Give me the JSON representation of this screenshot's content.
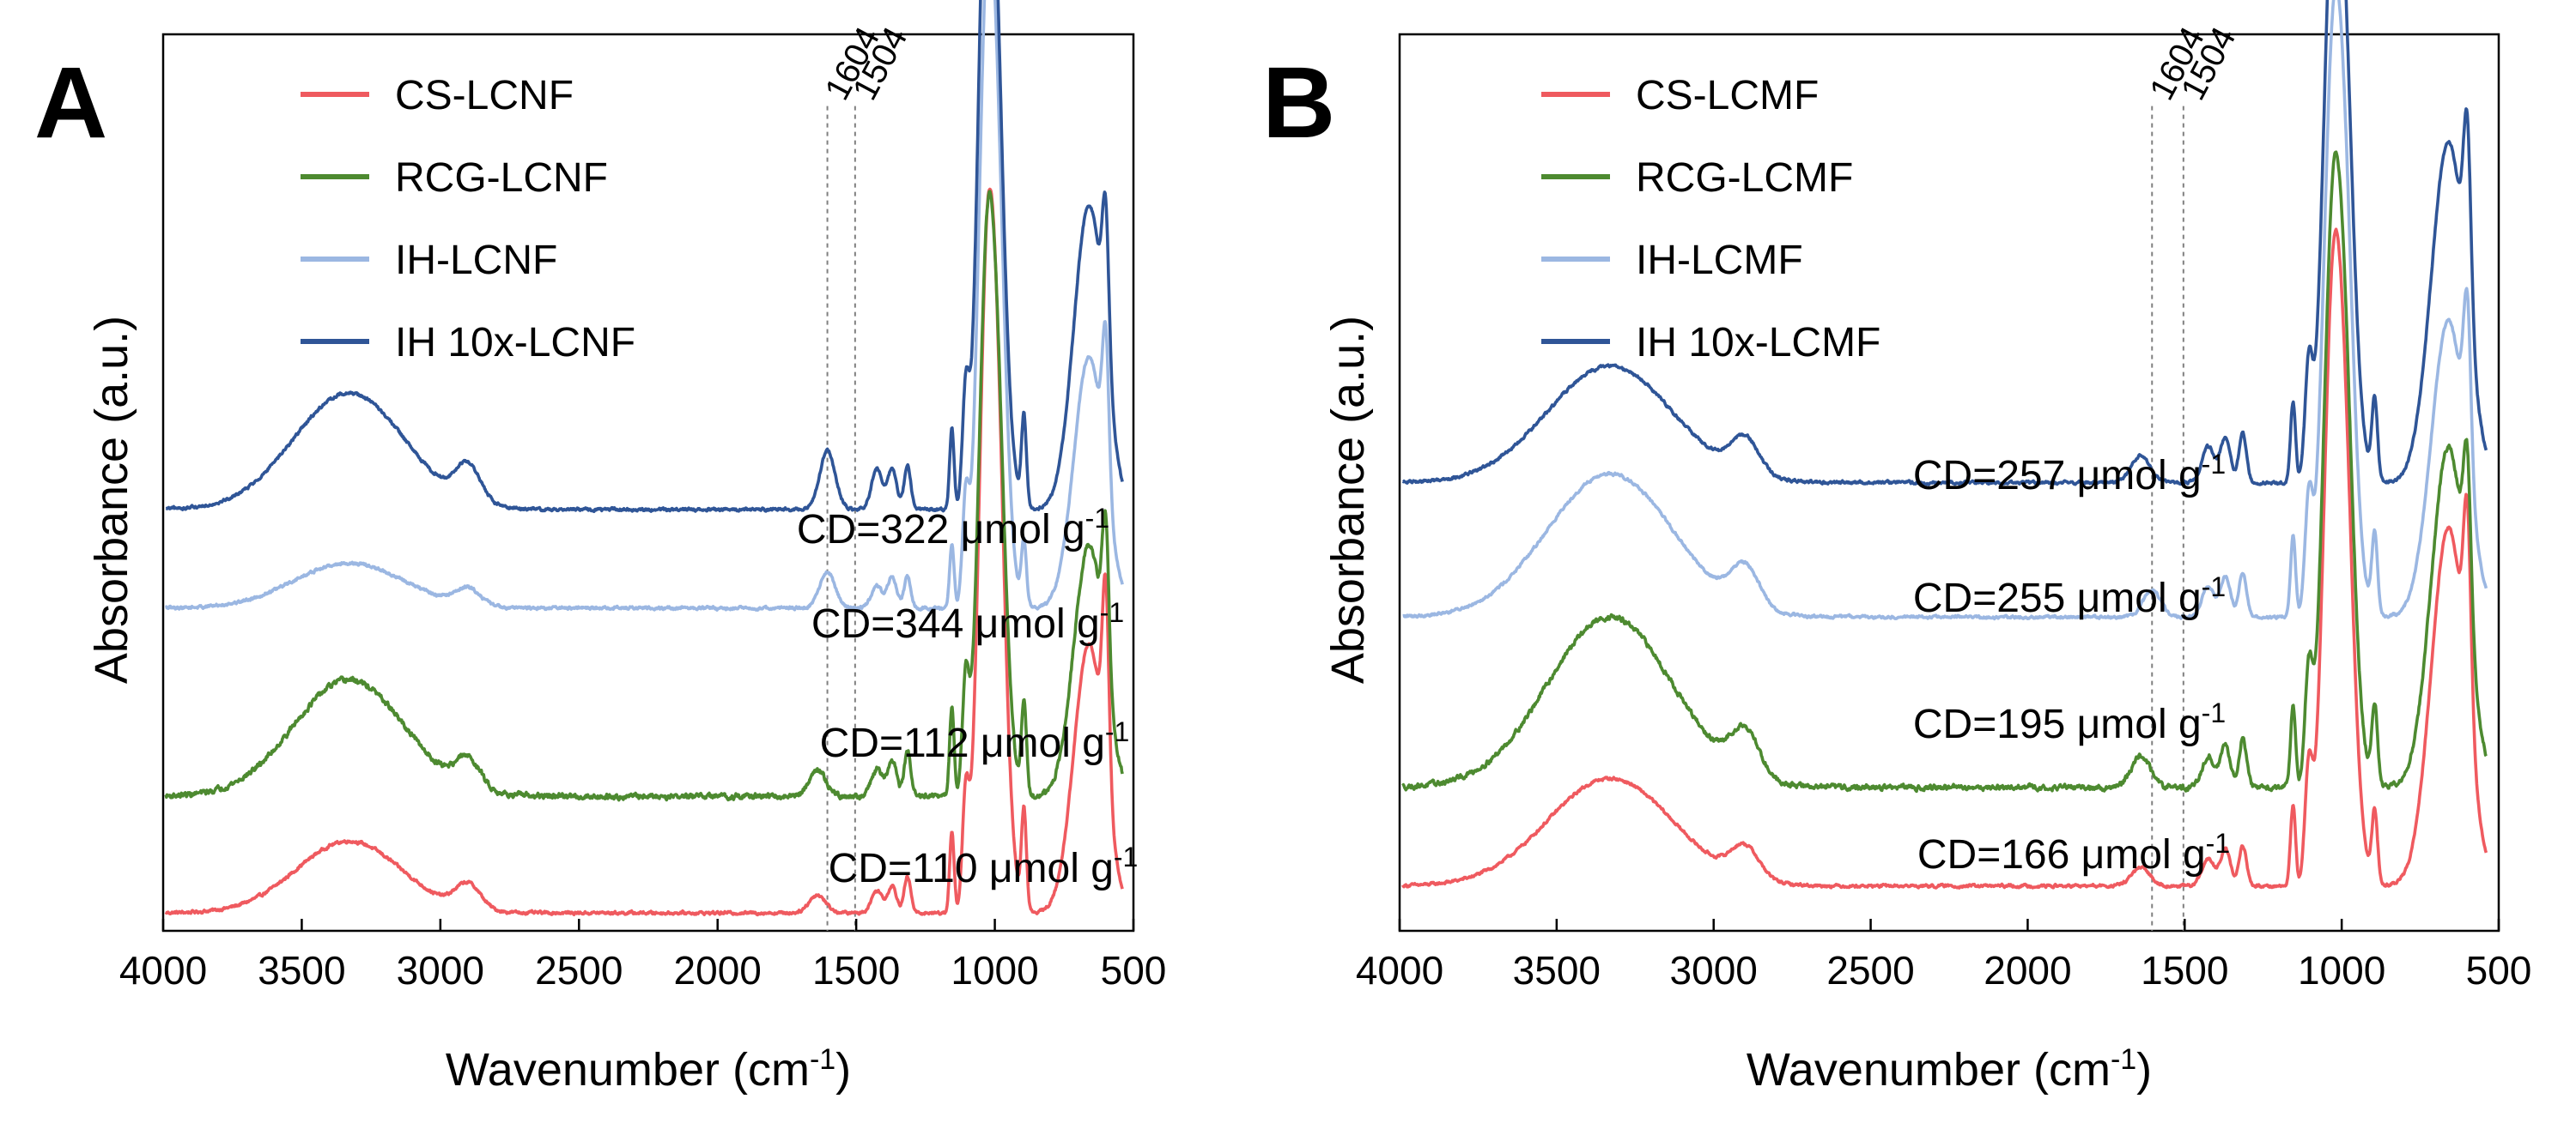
{
  "figure": {
    "panels": [
      {
        "letter": "A",
        "series_names": [
          "CS-LCNF",
          "RCG-LCNF",
          "IH-LCNF",
          "IH 10x-LCNF"
        ],
        "cd_labels": [
          {
            "text": "CD=110 μmol g",
            "sup": "-1"
          },
          {
            "text": "CD=112 μmol g",
            "sup": "-1"
          },
          {
            "text": "CD=344 μmol g",
            "sup": "-1"
          },
          {
            "text": "CD=322 μmol g",
            "sup": "-1"
          }
        ]
      },
      {
        "letter": "B",
        "series_names": [
          "CS-LCMF",
          "RCG-LCMF",
          "IH-LCMF",
          "IH 10x-LCMF"
        ],
        "cd_labels": [
          {
            "text": "CD=166 μmol g",
            "sup": "-1"
          },
          {
            "text": "CD=195 μmol g",
            "sup": "-1"
          },
          {
            "text": "CD=255 μmol g",
            "sup": "-1"
          },
          {
            "text": "CD=257 μmol g",
            "sup": "-1"
          }
        ]
      }
    ],
    "colors": [
      "#ef5a5f",
      "#4d8a30",
      "#9bb7e2",
      "#2f5597"
    ]
  },
  "chart_data": [
    {
      "type": "line",
      "panel": "A",
      "title": "",
      "xlabel": "Wavenumber (cm",
      "xlabel_sup": "-1",
      "xlabel_tail": ")",
      "ylabel": "Absorbance (a.u.)",
      "xlim": [
        4000,
        500
      ],
      "ylim": [
        0,
        100
      ],
      "xticks": [
        4000,
        3500,
        3000,
        2500,
        2000,
        1500,
        1000,
        500
      ],
      "reference_lines": [
        {
          "x": 1604,
          "label": "1604"
        },
        {
          "x": 1504,
          "label": "1504"
        }
      ],
      "legend_location": "top-left",
      "series": [
        {
          "name": "CS-LCNF",
          "offset": 2,
          "noise": 0.25,
          "peaks": [
            [
              3330,
              190,
              8
            ],
            [
              2900,
              45,
              2.8
            ],
            [
              1640,
              30,
              2
            ],
            [
              1425,
              20,
              2.5
            ],
            [
              1370,
              16,
              3
            ],
            [
              1315,
              12,
              4
            ],
            [
              1155,
              8,
              9
            ],
            [
              1105,
              12,
              12
            ],
            [
              1030,
              30,
              53
            ],
            [
              1000,
              40,
              27
            ],
            [
              985,
              25,
              18
            ],
            [
              895,
              9,
              11
            ],
            [
              660,
              55,
              30
            ],
            [
              600,
              12,
              21
            ]
          ]
        },
        {
          "name": "RCG-LCNF",
          "offset": 15,
          "noise": 0.45,
          "peaks": [
            [
              3330,
              200,
              13
            ],
            [
              2900,
              45,
              3.2
            ],
            [
              1640,
              30,
              3
            ],
            [
              1425,
              20,
              3
            ],
            [
              1370,
              16,
              4
            ],
            [
              1315,
              12,
              5
            ],
            [
              1155,
              8,
              10
            ],
            [
              1105,
              12,
              12
            ],
            [
              1030,
              30,
              45
            ],
            [
              1000,
              40,
              22
            ],
            [
              985,
              25,
              14
            ],
            [
              895,
              9,
              10
            ],
            [
              660,
              55,
              28
            ],
            [
              600,
              12,
              16
            ]
          ]
        },
        {
          "name": "IH-LCNF",
          "offset": 36,
          "noise": 0.25,
          "peaks": [
            [
              3330,
              200,
              5
            ],
            [
              2900,
              45,
              1.8
            ],
            [
              1604,
              28,
              4
            ],
            [
              1425,
              20,
              2.5
            ],
            [
              1370,
              16,
              3.5
            ],
            [
              1315,
              12,
              3.5
            ],
            [
              1155,
              8,
              7
            ],
            [
              1105,
              12,
              11
            ],
            [
              1030,
              30,
              53
            ],
            [
              1000,
              40,
              23
            ],
            [
              985,
              25,
              16
            ],
            [
              895,
              9,
              7
            ],
            [
              660,
              55,
              28
            ],
            [
              600,
              12,
              16
            ]
          ]
        },
        {
          "name": "IH 10x-LCNF",
          "offset": 47,
          "noise": 0.25,
          "peaks": [
            [
              3330,
              200,
              13
            ],
            [
              2900,
              45,
              4
            ],
            [
              1604,
              28,
              6.5
            ],
            [
              1425,
              20,
              4.5
            ],
            [
              1370,
              16,
              4.5
            ],
            [
              1315,
              12,
              5
            ],
            [
              1155,
              8,
              9
            ],
            [
              1105,
              12,
              12
            ],
            [
              1030,
              30,
              61
            ],
            [
              1000,
              40,
              22
            ],
            [
              985,
              25,
              13
            ],
            [
              895,
              9,
              10
            ],
            [
              660,
              55,
              34
            ],
            [
              600,
              12,
              16
            ]
          ]
        }
      ]
    },
    {
      "type": "line",
      "panel": "B",
      "title": "",
      "xlabel": "Wavenumber (cm",
      "xlabel_sup": "-1",
      "xlabel_tail": ")",
      "ylabel": "Absorbance (a.u.)",
      "xlim": [
        4000,
        500
      ],
      "ylim": [
        0,
        100
      ],
      "xticks": [
        4000,
        3500,
        3000,
        2500,
        2000,
        1500,
        1000,
        500
      ],
      "reference_lines": [
        {
          "x": 1604,
          "label": "1604"
        },
        {
          "x": 1504,
          "label": "1504"
        }
      ],
      "legend_location": "top-left",
      "series": [
        {
          "name": "CS-LCMF",
          "offset": 5,
          "noise": 0.25,
          "peaks": [
            [
              3330,
              200,
              12
            ],
            [
              2900,
              45,
              3.5
            ],
            [
              1640,
              30,
              2
            ],
            [
              1425,
              20,
              3
            ],
            [
              1370,
              16,
              4
            ],
            [
              1315,
              12,
              4.5
            ],
            [
              1155,
              8,
              9
            ],
            [
              1105,
              12,
              12
            ],
            [
              1030,
              30,
              50
            ],
            [
              1000,
              40,
              22
            ],
            [
              985,
              25,
              17
            ],
            [
              895,
              9,
              8
            ],
            [
              660,
              55,
              40
            ],
            [
              600,
              12,
              21
            ]
          ]
        },
        {
          "name": "RCG-LCMF",
          "offset": 16,
          "noise": 0.45,
          "peaks": [
            [
              3330,
              200,
              19
            ],
            [
              2900,
              45,
              5
            ],
            [
              1640,
              30,
              3.5
            ],
            [
              1425,
              20,
              3.5
            ],
            [
              1370,
              16,
              4.5
            ],
            [
              1315,
              12,
              5.5
            ],
            [
              1155,
              8,
              9
            ],
            [
              1105,
              12,
              12
            ],
            [
              1030,
              30,
              48
            ],
            [
              1000,
              40,
              22
            ],
            [
              985,
              25,
              16
            ],
            [
              895,
              9,
              9
            ],
            [
              660,
              55,
              38
            ],
            [
              600,
              12,
              17
            ]
          ]
        },
        {
          "name": "IH-LCMF",
          "offset": 35,
          "noise": 0.25,
          "peaks": [
            [
              3330,
              200,
              16
            ],
            [
              2900,
              45,
              4.5
            ],
            [
              1604,
              28,
              3
            ],
            [
              1425,
              20,
              3.5
            ],
            [
              1370,
              16,
              4.5
            ],
            [
              1315,
              12,
              5
            ],
            [
              1155,
              8,
              9
            ],
            [
              1105,
              12,
              12
            ],
            [
              1030,
              30,
              47
            ],
            [
              1000,
              40,
              22
            ],
            [
              985,
              25,
              17
            ],
            [
              895,
              9,
              9
            ],
            [
              660,
              55,
              33
            ],
            [
              600,
              12,
              18
            ]
          ]
        },
        {
          "name": "IH 10x-LCMF",
          "offset": 50,
          "noise": 0.25,
          "peaks": [
            [
              3330,
              200,
              13
            ],
            [
              2900,
              45,
              4
            ],
            [
              1640,
              30,
              3
            ],
            [
              1425,
              20,
              4
            ],
            [
              1370,
              16,
              5
            ],
            [
              1315,
              12,
              5.5
            ],
            [
              1155,
              8,
              9
            ],
            [
              1105,
              12,
              12
            ],
            [
              1030,
              30,
              48
            ],
            [
              1000,
              40,
              22
            ],
            [
              985,
              25,
              17
            ],
            [
              895,
              9,
              9
            ],
            [
              660,
              55,
              38
            ],
            [
              600,
              12,
              20
            ]
          ]
        }
      ]
    }
  ]
}
